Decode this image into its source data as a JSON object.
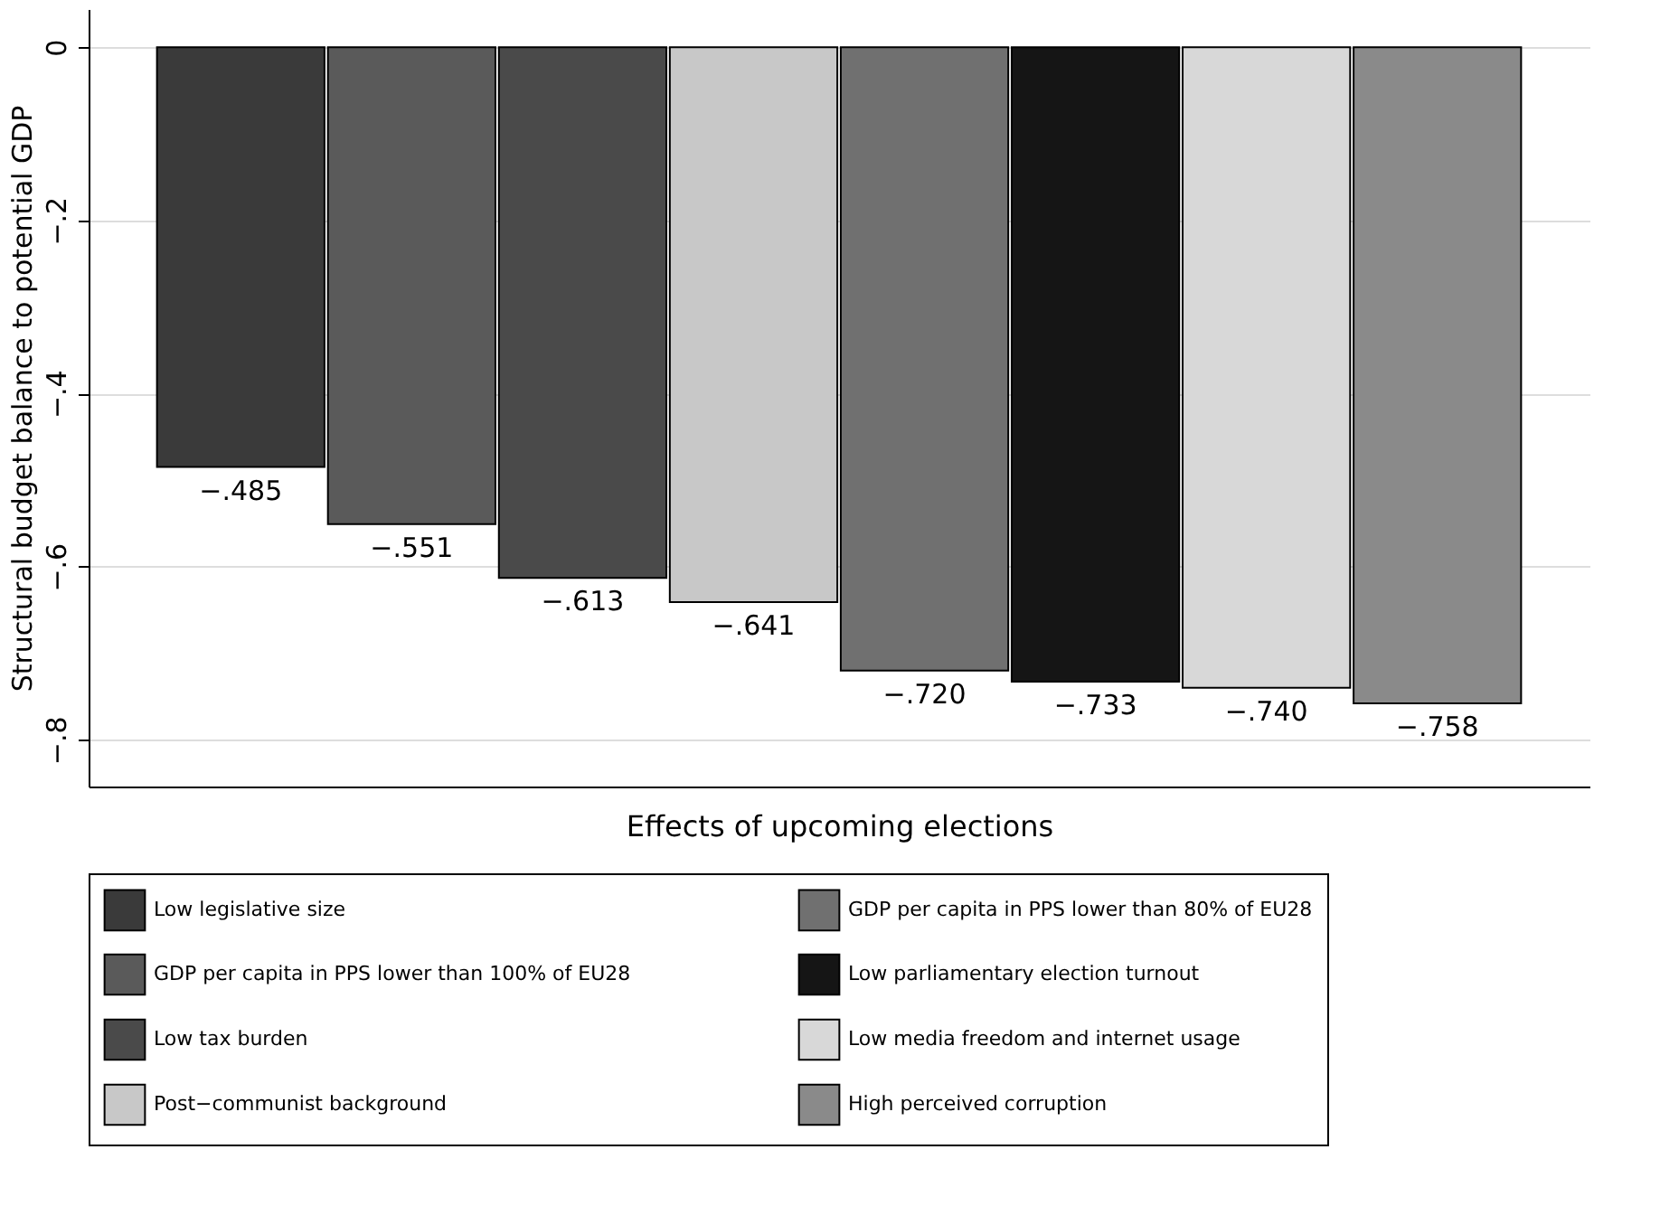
{
  "chart_data": {
    "type": "bar",
    "xlabel": "Effects of upcoming elections",
    "ylabel": "Structural budget balance to potential GDP",
    "categories": [
      null
    ],
    "series": [
      {
        "name": "Low legislative size",
        "color": "#3a3a3a",
        "values": [
          -0.485
        ]
      },
      {
        "name": "GDP per capita in PPS lower than 100% of EU28",
        "color": "#5a5a5a",
        "values": [
          -0.551
        ]
      },
      {
        "name": "Low tax burden",
        "color": "#4a4a4a",
        "values": [
          -0.613
        ]
      },
      {
        "name": "Post−communist background",
        "color": "#c8c8c8",
        "values": [
          -0.641
        ]
      },
      {
        "name": "GDP per capita in PPS lower than 80% of EU28",
        "color": "#707070",
        "values": [
          -0.72
        ]
      },
      {
        "name": "Low parliamentary election turnout",
        "color": "#151515",
        "values": [
          -0.733
        ]
      },
      {
        "name": "Low media freedom and internet usage",
        "color": "#d8d8d8",
        "values": [
          -0.74
        ]
      },
      {
        "name": "High perceived corruption",
        "color": "#8a8a8a",
        "values": [
          -0.758
        ]
      }
    ],
    "value_labels": [
      "−.485",
      "−.551",
      "−.613",
      "−.641",
      "−.720",
      "−.733",
      "−.740",
      "−.758"
    ],
    "ylim": [
      -0.854,
      0.044
    ],
    "yticks": [
      0,
      {
        "value": -0.2,
        "label": "−.2"
      },
      {
        "value": -0.4,
        "label": "−.4"
      },
      {
        "value": -0.6,
        "label": "−.6"
      },
      {
        "value": -0.8,
        "label": "−.8"
      }
    ],
    "grid": "y",
    "legend": "bottom"
  }
}
